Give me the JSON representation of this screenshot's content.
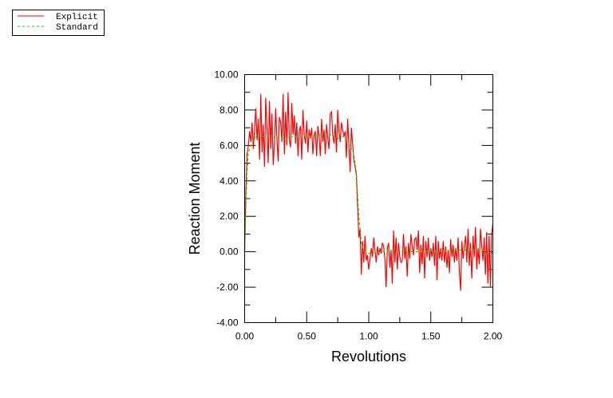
{
  "chart_data": {
    "type": "line",
    "title": "",
    "xlabel": "Revolutions",
    "ylabel": "Reaction Moment",
    "xlim": [
      0,
      2
    ],
    "ylim": [
      -4,
      10
    ],
    "xticks": [
      "0.00",
      "0.50",
      "1.00",
      "1.50",
      "2.00"
    ],
    "yticks": [
      "-4.00",
      "-2.00",
      "0.00",
      "2.00",
      "4.00",
      "6.00",
      "8.00",
      "10.00"
    ],
    "grid": false,
    "legend_placement": "top-left, outside",
    "series": [
      {
        "name": "Explicit",
        "color": "#ff0000",
        "style": "solid",
        "x_start": 0,
        "x_step": 0.01,
        "y": [
          0,
          3.5,
          5.5,
          6.0,
          6.8,
          6.2,
          7.3,
          5.8,
          6.9,
          8.1,
          6.3,
          7.5,
          5.2,
          8.9,
          5.6,
          7.2,
          4.8,
          8.7,
          6.9,
          5.0,
          8.5,
          5.8,
          7.8,
          4.9,
          6.1,
          8.1,
          6.4,
          5.1,
          7.6,
          7.3,
          6.2,
          8.9,
          5.5,
          7.9,
          6.0,
          9.0,
          6.3,
          5.9,
          8.4,
          6.6,
          7.7,
          6.1,
          7.3,
          5.4,
          6.8,
          7.1,
          5.2,
          8.0,
          6.6,
          6.1,
          7.4,
          5.6,
          6.9,
          6.4,
          7.0,
          5.5,
          6.6,
          6.8,
          5.4,
          7.1,
          6.5,
          5.4,
          7.5,
          6.2,
          6.9,
          5.5,
          7.2,
          6.4,
          5.8,
          7.8,
          7.9,
          6.6,
          6.1,
          7.2,
          5.6,
          8.0,
          6.8,
          6.2,
          7.3,
          6.9,
          6.5,
          6.8,
          5.3,
          7.5,
          6.0,
          4.5,
          7.0,
          6.1,
          5.2,
          4.8,
          4.3,
          2.6,
          0.8,
          1.3,
          -1.3,
          0.6,
          -0.6,
          0.9,
          -0.5,
          -0.2,
          -1.0,
          -0.4,
          0.2,
          -0.3,
          0.8,
          0.1,
          -0.6,
          0.3,
          -0.2,
          0.2,
          -0.1,
          0.5,
          0.3,
          -0.4,
          -2.0,
          0.2,
          0.5,
          -0.9,
          0.1,
          -1.8,
          1.2,
          -0.6,
          0.8,
          -1.0,
          0.5,
          -0.3,
          -0.6,
          -0.5,
          1.0,
          -0.4,
          0.3,
          -1.4,
          0.5,
          -0.4,
          1.0,
          0.3,
          -0.2,
          0.7,
          0.8,
          0.1,
          1.2,
          -1.2,
          0.4,
          -0.7,
          0.9,
          -1.5,
          0.6,
          -0.3,
          0.8,
          -0.5,
          0.2,
          -0.3,
          0.5,
          -0.8,
          0.9,
          -1.6,
          0.6,
          -0.4,
          0.2,
          -0.5,
          0.6,
          -0.6,
          0.3,
          -0.9,
          0.1,
          -1.2,
          0.7,
          -0.3,
          0.4,
          -0.6,
          0.2,
          -0.5,
          0.8,
          -1.1,
          -2.2,
          0.6,
          -0.4,
          0.3,
          0.9,
          -0.6,
          1.3,
          -0.8,
          0.5,
          -1.5,
          0.9,
          -0.3,
          1.4,
          -1.0,
          0.2,
          -0.7,
          1.3,
          0.4,
          -0.5,
          0.8,
          -1.3,
          1.1,
          -1.8,
          0.9,
          -2.0,
          1.0,
          1.6
        ]
      },
      {
        "name": "Standard",
        "color": "#00e000",
        "style": "dashed",
        "x": [
          0,
          0.01,
          0.02,
          0.03,
          0.05,
          0.08,
          0.1,
          0.15,
          0.2,
          0.3,
          0.4,
          0.5,
          0.6,
          0.7,
          0.75,
          0.8,
          0.85,
          0.88,
          0.9,
          0.92,
          0.94,
          0.96,
          1.0,
          1.1,
          1.2,
          1.3,
          1.4,
          1.5,
          1.6,
          1.7,
          1.8,
          1.9,
          2.0
        ],
        "y": [
          0,
          2.5,
          4.5,
          5.6,
          6.0,
          6.4,
          6.6,
          6.5,
          6.5,
          6.4,
          6.5,
          6.5,
          6.6,
          6.6,
          6.4,
          6.5,
          6.0,
          5.5,
          4.5,
          2.0,
          0.5,
          0.1,
          -0.1,
          0.0,
          0.1,
          0.0,
          0.0,
          0.05,
          0.0,
          0.1,
          0.1,
          0.1,
          -0.1
        ]
      }
    ]
  }
}
